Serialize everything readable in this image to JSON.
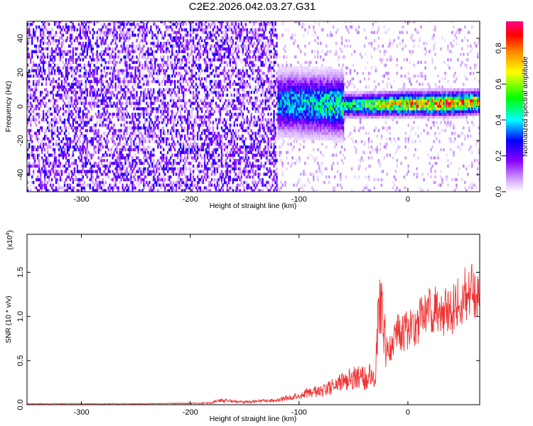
{
  "title": "C2E2.2026.042.03.27.G31",
  "chart_data": [
    {
      "type": "heatmap",
      "title": "C2E2.2026.042.03.27.G31",
      "xlabel": "Height of straight line (km)",
      "ylabel": "Frequency (Hz)",
      "xlim": [
        -350,
        66
      ],
      "ylim": [
        -50,
        50
      ],
      "xticks": [
        -300,
        -200,
        -100,
        0
      ],
      "yticks": [
        -40,
        -20,
        0,
        20,
        40
      ],
      "colorbar": {
        "label": "Normalized spectral amplitude",
        "range": [
          0,
          0.95
        ],
        "ticks": [
          "0.0",
          "0.2",
          "0.4",
          "0.6",
          "0.8"
        ],
        "colors": [
          "#ffffff",
          "#8800ff",
          "#0000ff",
          "#00ffff",
          "#00ff00",
          "#ffff00",
          "#ff8800",
          "#ff0000",
          "#ff00aa"
        ]
      },
      "ridge": {
        "description_free_values": true,
        "x": [
          -350,
          -250,
          -200,
          -150,
          -100,
          -50,
          0,
          30,
          66
        ],
        "center_hz": [
          0,
          2,
          3,
          2,
          1,
          0,
          1,
          1,
          2
        ],
        "peak_amplitude": [
          0.15,
          0.2,
          0.3,
          0.35,
          0.45,
          0.55,
          0.85,
          0.9,
          0.8
        ]
      }
    },
    {
      "type": "line",
      "xlabel": "Height of straight line (km)",
      "ylabel": "SNR (10 * v/v)",
      "yscale_label": "(x10",
      "yscale_exp": "4",
      "yscale_close": ")",
      "xlim": [
        -350,
        66
      ],
      "ylim": [
        0,
        1.93
      ],
      "xticks": [
        -300,
        -200,
        -100,
        0
      ],
      "yticks": [
        "0.0",
        "0.5",
        "1.0",
        "1.5"
      ],
      "series": [
        {
          "color": "#ee3333",
          "x": [
            -350,
            -250,
            -200,
            -180,
            -175,
            -150,
            -120,
            -100,
            -90,
            -80,
            -70,
            -60,
            -50,
            -40,
            -30,
            -25,
            -20,
            -15,
            -10,
            0,
            10,
            20,
            30,
            40,
            50,
            60,
            66
          ],
          "y": [
            0.01,
            0.01,
            0.015,
            0.02,
            0.05,
            0.03,
            0.05,
            0.1,
            0.15,
            0.15,
            0.2,
            0.25,
            0.3,
            0.3,
            0.35,
            1.4,
            0.6,
            0.7,
            0.8,
            0.85,
            0.95,
            1.1,
            1.05,
            1.05,
            1.2,
            1.3,
            1.2
          ]
        }
      ]
    }
  ]
}
